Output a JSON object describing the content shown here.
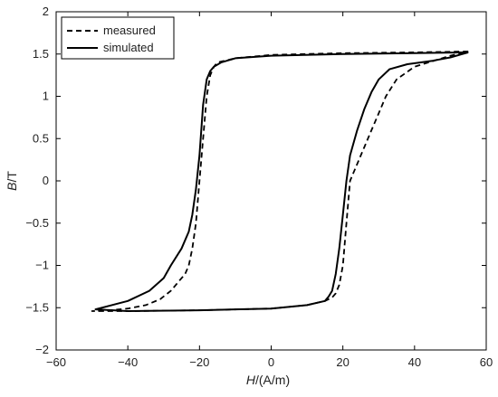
{
  "chart_data": {
    "type": "line",
    "xlabel_italic": "H",
    "xlabel_rest": "/(A/m)",
    "ylabel_italic": "B",
    "ylabel_rest": "/T",
    "xlim": [
      -60,
      60
    ],
    "ylim": [
      -2,
      2
    ],
    "xticks": [
      -60,
      -40,
      -20,
      0,
      20,
      40,
      60
    ],
    "yticks": [
      -2,
      -1.5,
      -1,
      -0.5,
      0,
      0.5,
      1,
      1.5,
      2
    ],
    "xtick_labels": [
      "−60",
      "−40",
      "−20",
      "0",
      "20",
      "40",
      "60"
    ],
    "ytick_labels": [
      "−2",
      "−1.5",
      "−1",
      "−0.5",
      "0",
      "0.5",
      "1",
      "1.5",
      "2"
    ],
    "grid": false,
    "legend_position": "top-left",
    "series": [
      {
        "name": "measured",
        "style": "dashed",
        "color": "#000000",
        "x": [
          55,
          40,
          20,
          0,
          -10,
          -15,
          -16,
          -17,
          -18,
          -19,
          -20,
          -21,
          -22,
          -23,
          -24,
          -26,
          -28,
          -31,
          -35,
          -40,
          -45,
          -50,
          -40,
          -20,
          0,
          10,
          15,
          17,
          18,
          19,
          20,
          21,
          22,
          24,
          26,
          28,
          30,
          32,
          35,
          40,
          50,
          55
        ],
        "y": [
          1.53,
          1.52,
          1.51,
          1.49,
          1.45,
          1.4,
          1.35,
          1.25,
          1.0,
          0.5,
          0.0,
          -0.5,
          -0.8,
          -1.0,
          -1.1,
          -1.2,
          -1.3,
          -1.4,
          -1.47,
          -1.51,
          -1.53,
          -1.54,
          -1.54,
          -1.53,
          -1.51,
          -1.47,
          -1.42,
          -1.38,
          -1.33,
          -1.23,
          -1.0,
          -0.5,
          0.0,
          0.2,
          0.4,
          0.6,
          0.8,
          1.0,
          1.2,
          1.35,
          1.48,
          1.53
        ]
      },
      {
        "name": "simulated",
        "style": "solid",
        "color": "#000000",
        "x": [
          55,
          40,
          20,
          0,
          -10,
          -14,
          -16,
          -17,
          -18,
          -19,
          -20,
          -21,
          -22,
          -23,
          -25,
          -28,
          -30,
          -34,
          -40,
          -49,
          -40,
          -20,
          0,
          10,
          15,
          16,
          17,
          18,
          19,
          20,
          21,
          22,
          24,
          26,
          28,
          30,
          33,
          38,
          45,
          50,
          55
        ],
        "y": [
          1.52,
          1.51,
          1.5,
          1.48,
          1.45,
          1.4,
          1.35,
          1.3,
          1.2,
          0.9,
          0.3,
          -0.1,
          -0.4,
          -0.6,
          -0.8,
          -1.0,
          -1.15,
          -1.3,
          -1.42,
          -1.52,
          -1.54,
          -1.53,
          -1.51,
          -1.47,
          -1.42,
          -1.37,
          -1.3,
          -1.1,
          -0.8,
          -0.4,
          0.0,
          0.3,
          0.6,
          0.85,
          1.05,
          1.2,
          1.32,
          1.38,
          1.42,
          1.46,
          1.52
        ]
      }
    ]
  }
}
